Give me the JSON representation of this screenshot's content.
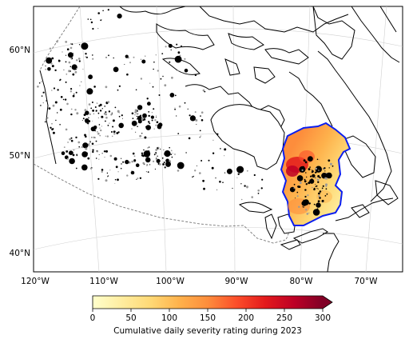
{
  "map": {
    "lat_labels": [
      "60°N",
      "50°N",
      "40°N"
    ],
    "lon_labels": [
      "120°W",
      "110°W",
      "100°W",
      "90°W",
      "80°W",
      "70°W"
    ],
    "highlight_color": "#0a1ef0",
    "fire_color": "#000000",
    "background": "#ffffff"
  },
  "colorbar": {
    "label": "Cumulative daily severity rating during 2023",
    "ticks": [
      "0",
      "50",
      "100",
      "150",
      "200",
      "250",
      "300"
    ],
    "range": [
      0,
      300
    ],
    "extend": "max",
    "colormap": "YlOrRd",
    "colors": [
      "#ffffcc",
      "#ffeda0",
      "#fed976",
      "#feb24c",
      "#fd8d3c",
      "#fc4e2a",
      "#e31a1c",
      "#bd0026",
      "#800026"
    ]
  }
}
